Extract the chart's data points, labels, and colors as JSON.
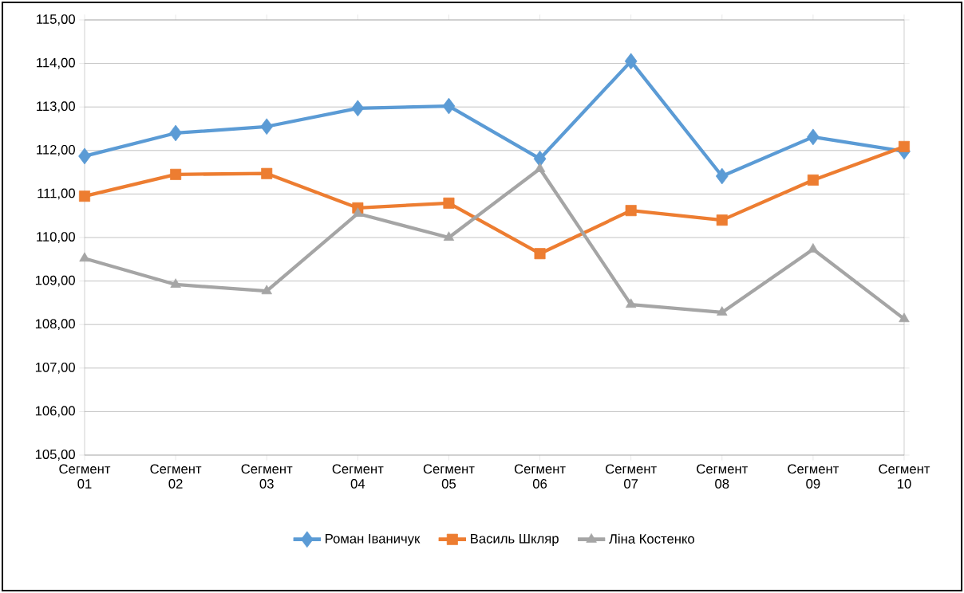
{
  "chart_data": {
    "type": "line",
    "categories": [
      "Сегмент 01",
      "Сегмент 02",
      "Сегмент 03",
      "Сегмент 04",
      "Сегмент 05",
      "Сегмент 06",
      "Сегмент 07",
      "Сегмент 08",
      "Сегмент 09",
      "Сегмент 10"
    ],
    "series": [
      {
        "name": "Роман Іваничук",
        "color": "#5b9bd5",
        "marker": "diamond",
        "values": [
          111.87,
          112.4,
          112.55,
          112.97,
          113.02,
          111.81,
          114.05,
          111.41,
          112.31,
          111.98
        ]
      },
      {
        "name": "Василь Шкляр",
        "color": "#ed7d31",
        "marker": "square",
        "values": [
          110.95,
          111.45,
          111.47,
          110.68,
          110.79,
          109.63,
          110.62,
          110.4,
          111.32,
          112.09
        ]
      },
      {
        "name": "Ліна Костенко",
        "color": "#a5a5a5",
        "marker": "triangle",
        "values": [
          109.52,
          108.92,
          108.77,
          110.55,
          110.0,
          111.58,
          108.46,
          108.28,
          109.73,
          108.13
        ]
      }
    ],
    "ylim": [
      105,
      115
    ],
    "yticks": [
      {
        "value": 105,
        "label": "105,00"
      },
      {
        "value": 106,
        "label": "106,00"
      },
      {
        "value": 107,
        "label": "107,00"
      },
      {
        "value": 108,
        "label": "108,00"
      },
      {
        "value": 109,
        "label": "109,00"
      },
      {
        "value": 110,
        "label": "110,00"
      },
      {
        "value": 111,
        "label": "111,00"
      },
      {
        "value": 112,
        "label": "112,00"
      },
      {
        "value": 113,
        "label": "113,00"
      },
      {
        "value": 114,
        "label": "114,00"
      },
      {
        "value": 115,
        "label": "115,00"
      }
    ],
    "grid": "y",
    "legend": "bottom",
    "line_style": "solid"
  }
}
